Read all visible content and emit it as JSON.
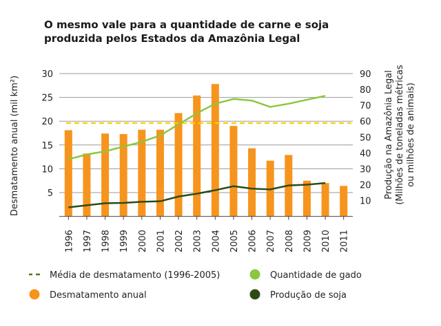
{
  "chart_data": {
    "type": "bar",
    "title": [
      "O mesmo vale para a quantidade de carne e soja",
      "produzida pelos Estados da Amazônia Legal"
    ],
    "categories": [
      "1996",
      "1997",
      "1998",
      "1999",
      "2000",
      "2001",
      "2002",
      "2003",
      "2004",
      "2005",
      "2006",
      "2007",
      "2008",
      "2009",
      "2010",
      "2011"
    ],
    "ylabel": "Desmatamento anual (mil km²)",
    "ylim": [
      0,
      30
    ],
    "yticks": [
      5,
      10,
      15,
      20,
      25,
      30
    ],
    "y2label": [
      "Produção na Amazônia Legal",
      "(Milhões de toneladas métricas",
      "ou milhões de animais)"
    ],
    "y2lim": [
      0,
      90
    ],
    "y2ticks": [
      10,
      20,
      30,
      40,
      50,
      60,
      70,
      80,
      90
    ],
    "grid": true,
    "legend_position": "bottom",
    "series": [
      {
        "name": "Desmatamento anual",
        "type": "bar",
        "axis": "left",
        "color": "#f7941d",
        "values": [
          18.1,
          13.2,
          17.4,
          17.3,
          18.2,
          18.2,
          21.7,
          25.4,
          27.8,
          19.0,
          14.3,
          11.7,
          12.9,
          7.5,
          7.0,
          6.4
        ]
      },
      {
        "name": "Média de desmatamento (1996-2005)",
        "type": "hline",
        "axis": "left",
        "color": "#f2d200",
        "value": 19.6
      },
      {
        "name": "Quantidade de gado",
        "type": "line",
        "axis": "right",
        "color": "#8dc63f",
        "values": [
          36,
          39,
          41,
          44,
          47,
          51,
          58,
          65,
          71,
          74,
          73,
          69,
          71,
          73.5,
          76,
          null
        ]
      },
      {
        "name": "Produção de soja",
        "type": "line",
        "axis": "right",
        "color": "#2d4a14",
        "values": [
          5.7,
          7,
          8.3,
          8.5,
          9.2,
          9.5,
          12.5,
          14.3,
          16.5,
          19,
          17.5,
          17,
          19.5,
          20,
          21,
          null
        ]
      }
    ],
    "legend": [
      {
        "label": "Média de desmatamento (1996-2005)",
        "marker": "dash",
        "color": "#4a7a1e"
      },
      {
        "label": "Quantidade de gado",
        "marker": "circle",
        "color": "#8dc63f"
      },
      {
        "label": "Desmatamento anual",
        "marker": "circle",
        "color": "#f7941d"
      },
      {
        "label": "Produção de soja",
        "marker": "circle",
        "color": "#2d4a14"
      }
    ]
  }
}
